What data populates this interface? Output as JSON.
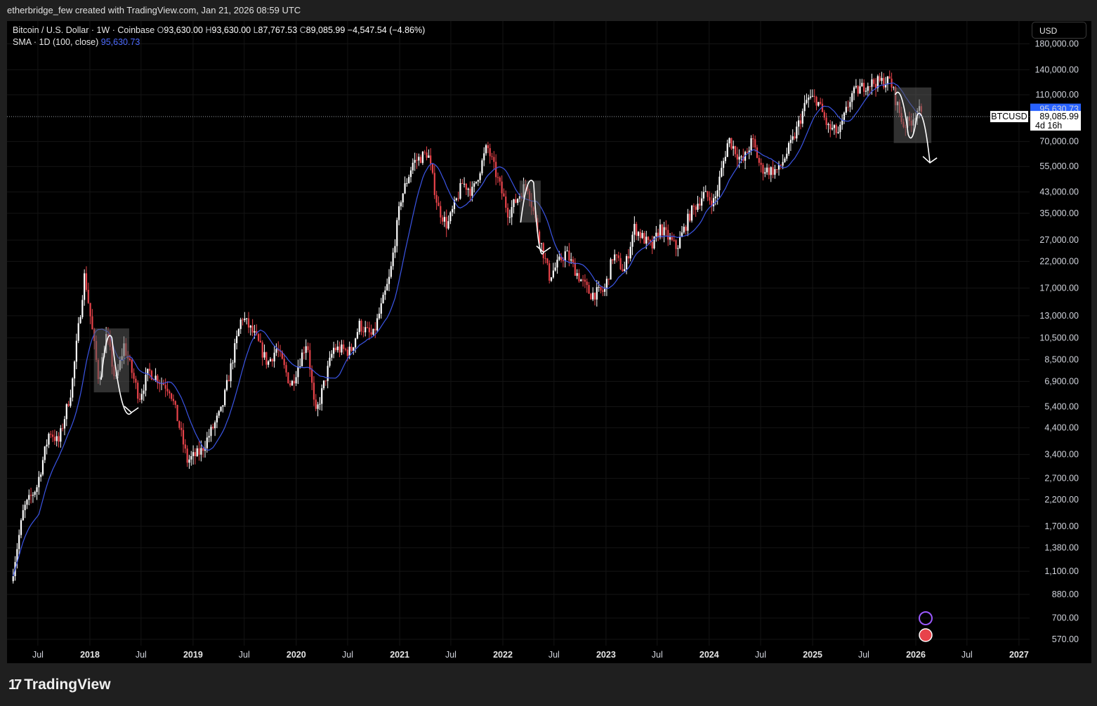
{
  "header": {
    "attribution": "etherbridge_few created with TradingView.com, Jan 21, 2026 08:59 UTC"
  },
  "legend": {
    "symbol": "Bitcoin / U.S. Dollar · 1W · Coinbase",
    "open_label": "O",
    "open": "93,630.00",
    "high_label": "H",
    "high": "93,630.00",
    "low_label": "L",
    "low": "87,767.53",
    "close_label": "C",
    "close": "89,085.99",
    "change": "−4,547.54 (−4.86%)",
    "sma_label": "SMA · 1D (100, close)",
    "sma_value": "95,630.73"
  },
  "currency_button": "USD",
  "price_tags": {
    "symbol_tag": "BTCUSD",
    "sma_tag": "95,630.73",
    "price_tag": "89,085.99",
    "countdown": "4d 16h"
  },
  "footer": {
    "brand": "TradingView",
    "logo_mark": "17"
  },
  "colors": {
    "background": "#000000",
    "up_candle": "#ffffff",
    "down_candle": "#e8434a",
    "sma_line": "#3b55e6",
    "highlight_box": "#5a5a5a",
    "sma_tag": "#2962ff"
  },
  "chart_data": {
    "type": "candlestick",
    "scale": "log",
    "ylim": [
      500,
      200000
    ],
    "y_ticks": [
      "570.00",
      "700.00",
      "880.00",
      "1,100.00",
      "1,380.00",
      "1,700.00",
      "2,200.00",
      "2,700.00",
      "3,400.00",
      "4,400.00",
      "5,400.00",
      "6,900.00",
      "8,500.00",
      "10,500.00",
      "13,000.00",
      "17,000.00",
      "22,000.00",
      "27,000.00",
      "35,000.00",
      "43,000.00",
      "55,000.00",
      "70,000.00",
      "89,085.99",
      "110,000.00",
      "140,000.00",
      "180,000.00"
    ],
    "x_ticks": [
      "Jul",
      "2018",
      "Jul",
      "2019",
      "Jul",
      "2020",
      "Jul",
      "2021",
      "Jul",
      "2022",
      "Jul",
      "2023",
      "Jul",
      "2024",
      "Jul",
      "2025",
      "Jul",
      "2026",
      "Jul",
      "2027"
    ],
    "x_range": [
      "2017-04",
      "2027-01"
    ],
    "price_path": [
      [
        "2017-04-01",
        1000
      ],
      [
        "2017-05-15",
        2000
      ],
      [
        "2017-07-01",
        2500
      ],
      [
        "2017-08-15",
        4300
      ],
      [
        "2017-09-15",
        3800
      ],
      [
        "2017-11-01",
        6500
      ],
      [
        "2017-12-17",
        19500
      ],
      [
        "2018-02-05",
        7000
      ],
      [
        "2018-03-05",
        11000
      ],
      [
        "2018-04-05",
        6800
      ],
      [
        "2018-05-05",
        9800
      ],
      [
        "2018-06-28",
        5900
      ],
      [
        "2018-08-01",
        7600
      ],
      [
        "2018-10-15",
        6400
      ],
      [
        "2018-11-20",
        4300
      ],
      [
        "2018-12-15",
        3200
      ],
      [
        "2019-02-01",
        3500
      ],
      [
        "2019-04-15",
        5200
      ],
      [
        "2019-06-26",
        13000
      ],
      [
        "2019-08-15",
        10500
      ],
      [
        "2019-09-25",
        8200
      ],
      [
        "2019-10-28",
        9500
      ],
      [
        "2019-12-17",
        6600
      ],
      [
        "2020-02-12",
        10300
      ],
      [
        "2020-03-12",
        4900
      ],
      [
        "2020-05-15",
        9500
      ],
      [
        "2020-07-15",
        9200
      ],
      [
        "2020-08-15",
        11900
      ],
      [
        "2020-10-01",
        10600
      ],
      [
        "2020-12-01",
        19000
      ],
      [
        "2021-01-08",
        40000
      ],
      [
        "2021-02-20",
        57000
      ],
      [
        "2021-04-14",
        63000
      ],
      [
        "2021-05-20",
        37000
      ],
      [
        "2021-06-22",
        31000
      ],
      [
        "2021-08-15",
        47000
      ],
      [
        "2021-09-20",
        43000
      ],
      [
        "2021-11-10",
        67000
      ],
      [
        "2022-01-24",
        35000
      ],
      [
        "2022-03-30",
        47000
      ],
      [
        "2022-05-10",
        29000
      ],
      [
        "2022-06-18",
        19000
      ],
      [
        "2022-08-15",
        24000
      ],
      [
        "2022-09-30",
        19000
      ],
      [
        "2022-11-10",
        16000
      ],
      [
        "2022-12-30",
        16500
      ],
      [
        "2023-01-30",
        23500
      ],
      [
        "2023-03-10",
        20000
      ],
      [
        "2023-04-14",
        30500
      ],
      [
        "2023-06-15",
        25000
      ],
      [
        "2023-07-15",
        30500
      ],
      [
        "2023-09-11",
        25000
      ],
      [
        "2023-10-30",
        35000
      ],
      [
        "2023-12-15",
        42000
      ],
      [
        "2024-01-23",
        39000
      ],
      [
        "2024-03-13",
        72000
      ],
      [
        "2024-05-01",
        57000
      ],
      [
        "2024-06-05",
        71000
      ],
      [
        "2024-07-05",
        54000
      ],
      [
        "2024-08-05",
        53000
      ],
      [
        "2024-09-06",
        53000
      ],
      [
        "2024-10-29",
        72000
      ],
      [
        "2024-12-17",
        106000
      ],
      [
        "2025-01-20",
        105000
      ],
      [
        "2025-02-28",
        80000
      ],
      [
        "2025-04-08",
        76000
      ],
      [
        "2025-05-22",
        110000
      ],
      [
        "2025-07-14",
        122000
      ],
      [
        "2025-08-14",
        124000
      ],
      [
        "2025-10-06",
        126000
      ],
      [
        "2025-11-21",
        82000
      ],
      [
        "2025-12-20",
        86000
      ],
      [
        "2026-01-14",
        97000
      ],
      [
        "2026-01-21",
        89086
      ]
    ],
    "sma_value": 95630.73,
    "last_price": 89085.99,
    "annotations": [
      {
        "type": "box",
        "from": "2018-01-15",
        "to": "2018-05-20",
        "low": 6200,
        "high": 11500
      },
      {
        "type": "curve",
        "points": [
          [
            "2018-02-10",
            7000
          ],
          [
            "2018-03-20",
            10500
          ],
          [
            "2018-05-28",
            5100
          ]
        ]
      },
      {
        "type": "box",
        "from": "2022-03-01",
        "to": "2022-05-15",
        "low": 32000,
        "high": 48000
      },
      {
        "type": "curve",
        "points": [
          [
            "2022-03-05",
            32000
          ],
          [
            "2022-04-20",
            47000
          ],
          [
            "2022-05-25",
            24000
          ]
        ]
      },
      {
        "type": "box",
        "from": "2025-10-15",
        "to": "2026-02-25",
        "low": 69000,
        "high": 118000
      },
      {
        "type": "curve",
        "points": [
          [
            "2025-10-20",
            110000
          ],
          [
            "2025-12-05",
            75000
          ],
          [
            "2026-01-05",
            90000
          ],
          [
            "2026-02-20",
            57000
          ]
        ]
      }
    ]
  }
}
